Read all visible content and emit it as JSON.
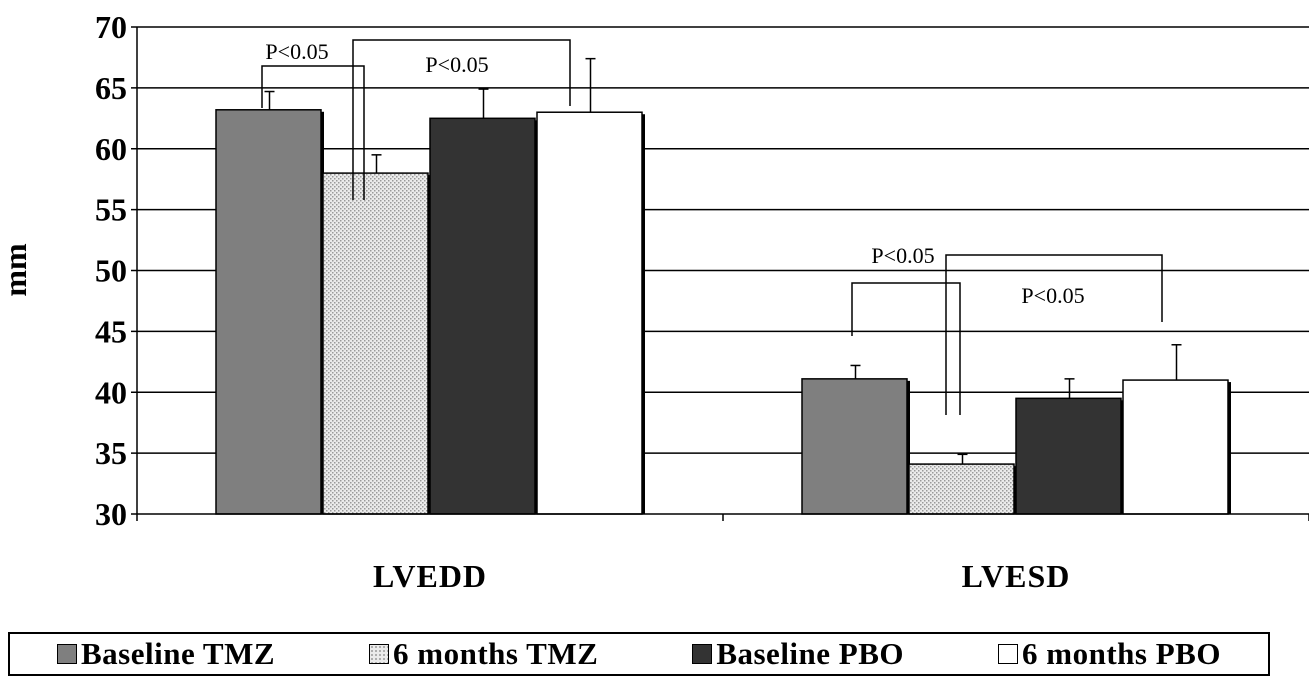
{
  "chart_data": {
    "type": "bar",
    "categories": [
      "LVEDD",
      "LVESD"
    ],
    "ylabel": "mm",
    "ylim": [
      30,
      70
    ],
    "yticks": [
      30,
      35,
      40,
      45,
      50,
      55,
      60,
      65,
      70
    ],
    "grid": true,
    "legend_position": "bottom",
    "series": [
      {
        "name": "Baseline TMZ",
        "values": [
          63.2,
          41.1
        ],
        "errors": [
          1.5,
          1.1
        ],
        "color": "#7f7f7f",
        "pattern": "solid"
      },
      {
        "name": "6 months TMZ",
        "values": [
          58.0,
          34.1
        ],
        "errors": [
          1.5,
          0.8
        ],
        "color": "#d9d9d9",
        "pattern": "dotted"
      },
      {
        "name": "Baseline PBO",
        "values": [
          62.5,
          39.5
        ],
        "errors": [
          2.4,
          1.6
        ],
        "color": "#333333",
        "pattern": "solid"
      },
      {
        "name": "6 months PBO",
        "values": [
          63.0,
          41.0
        ],
        "errors": [
          4.4,
          2.9
        ],
        "color": "#ffffff",
        "pattern": "solid"
      }
    ],
    "annotations": [
      {
        "category": "LVEDD",
        "from_series": 0,
        "to_series": 1,
        "text": "P<0.05"
      },
      {
        "category": "LVEDD",
        "from_series": 1,
        "to_series": 3,
        "text": "P<0.05"
      },
      {
        "category": "LVESD",
        "from_series": 0,
        "to_series": 1,
        "text": "P<0.05"
      },
      {
        "category": "LVESD",
        "from_series": 1,
        "to_series": 3,
        "text": "P<0.05"
      }
    ]
  }
}
